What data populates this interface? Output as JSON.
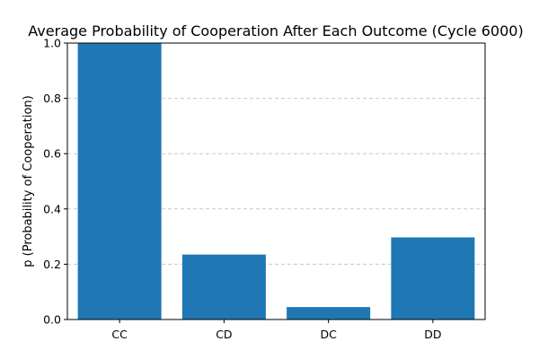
{
  "chart_data": {
    "type": "bar",
    "title": "Average Probability of Cooperation After Each Outcome (Cycle 6000)",
    "xlabel": "",
    "ylabel": "p (Probability of Cooperation)",
    "categories": [
      "CC",
      "CD",
      "DC",
      "DD"
    ],
    "values": [
      1.0,
      0.235,
      0.045,
      0.297
    ],
    "ylim": [
      0,
      1.0
    ],
    "yticks": [
      "0.0",
      "0.2",
      "0.4",
      "0.6",
      "0.8",
      "1.0"
    ],
    "grid": "y-dashed",
    "legend": "none",
    "bar_color": "#1f77b4"
  }
}
